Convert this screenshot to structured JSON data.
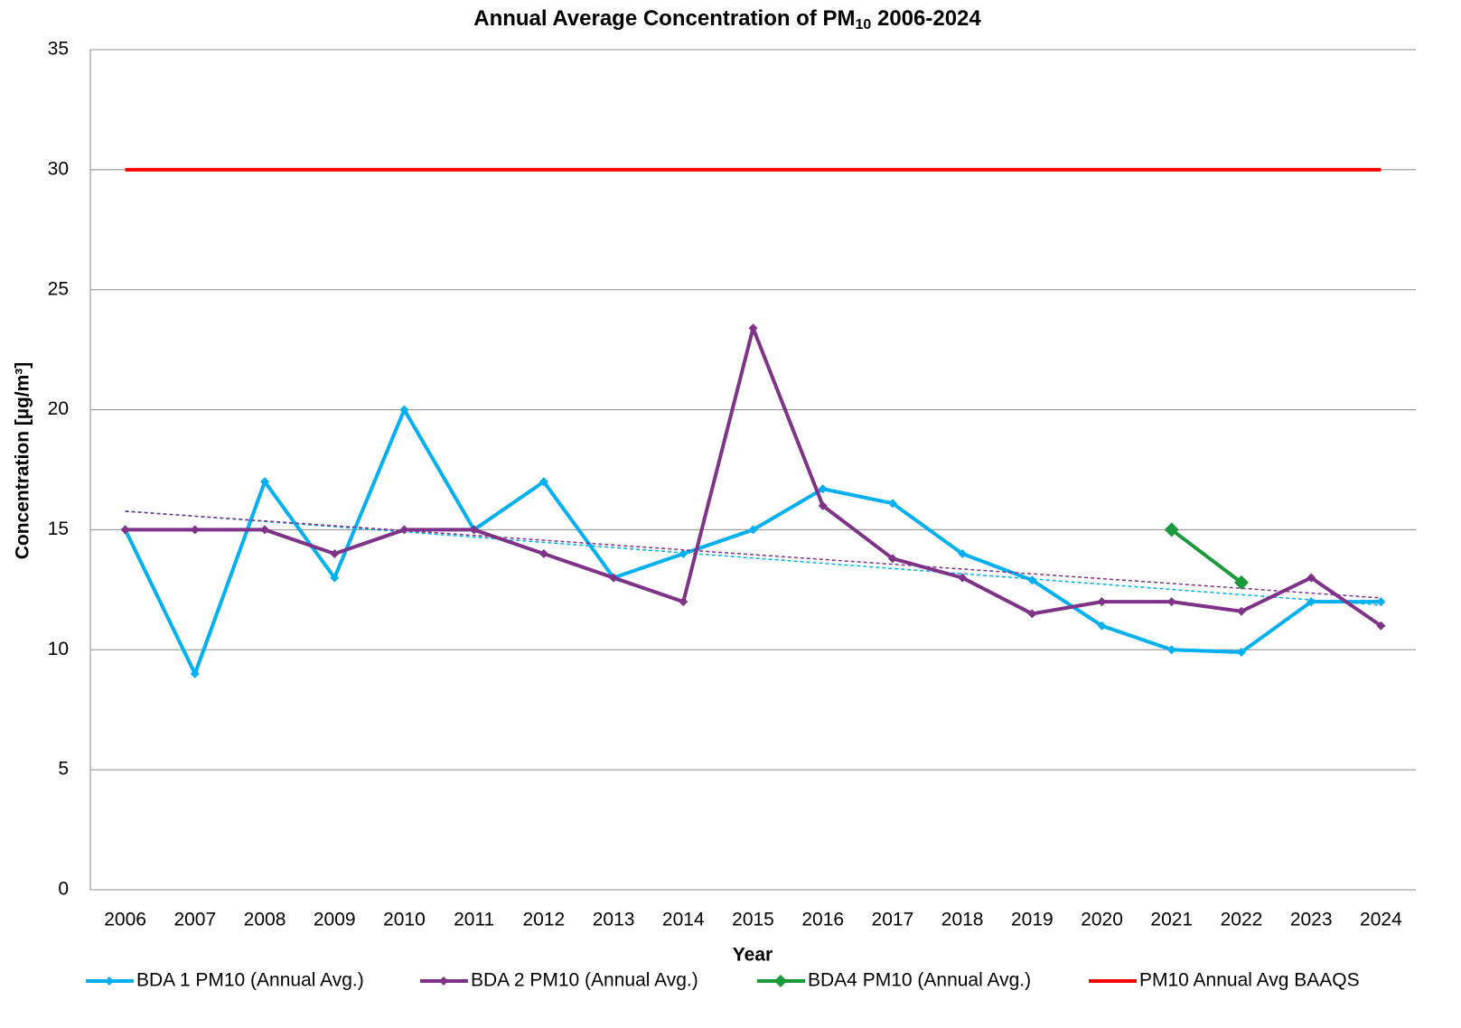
{
  "chart_data": {
    "type": "line",
    "title": {
      "text": "Annual Average Concentration of PM",
      "sub": "10",
      "rest": " 2006-2024"
    },
    "x_label": "Year",
    "y_label": "Concentration [µg/m³]",
    "categories": [
      "2006",
      "2007",
      "2008",
      "2009",
      "2010",
      "2011",
      "2012",
      "2013",
      "2014",
      "2015",
      "2016",
      "2017",
      "2018",
      "2019",
      "2020",
      "2021",
      "2022",
      "2023",
      "2024"
    ],
    "ylim": [
      0,
      35
    ],
    "yticks": [
      0,
      5,
      10,
      15,
      20,
      25,
      30,
      35
    ],
    "grid": true,
    "legend": "bottom",
    "series": [
      {
        "name": "BDA 1 PM10 (Annual Avg.)",
        "color": "#00b0f0",
        "marker": "small-diamond",
        "trendline": true,
        "values": [
          15,
          9,
          17,
          13,
          20,
          15,
          17,
          13,
          14,
          15,
          16.7,
          16.1,
          14,
          12.9,
          11,
          10,
          9.9,
          12,
          12
        ]
      },
      {
        "name": "BDA 2 PM10 (Annual Avg.)",
        "color": "#7e3388",
        "marker": "small-diamond",
        "trendline": true,
        "values": [
          15,
          15,
          15,
          14,
          15,
          15,
          14,
          13,
          12,
          23.4,
          16,
          13.8,
          13,
          11.5,
          12,
          12,
          11.6,
          13,
          11
        ]
      },
      {
        "name": "BDA4 PM10 (Annual Avg.)",
        "color": "#1a9a3a",
        "marker": "diamond",
        "trendline": false,
        "values": [
          null,
          null,
          null,
          null,
          null,
          null,
          null,
          null,
          null,
          null,
          null,
          null,
          null,
          null,
          null,
          15,
          12.8,
          null,
          null
        ]
      },
      {
        "name": "PM10 Annual Avg BAAQS",
        "color": "#ff0000",
        "marker": "none",
        "trendline": false,
        "values": [
          30,
          30,
          30,
          30,
          30,
          30,
          30,
          30,
          30,
          30,
          30,
          30,
          30,
          30,
          30,
          30,
          30,
          30,
          30
        ]
      }
    ]
  }
}
